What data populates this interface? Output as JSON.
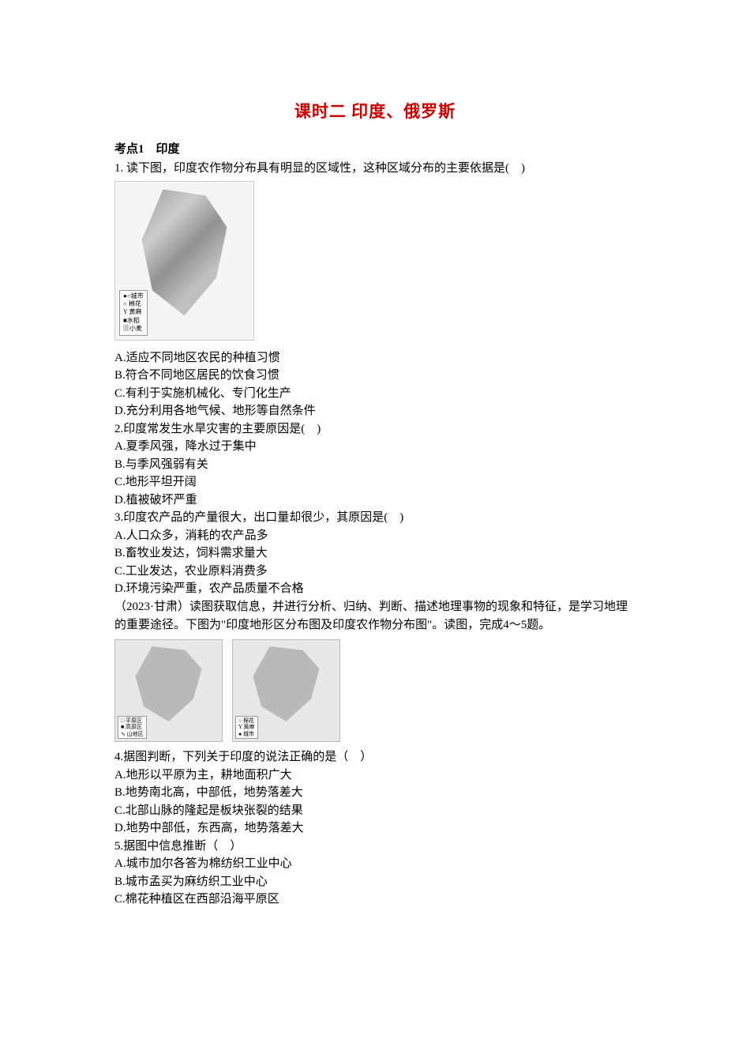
{
  "title": "课时二 印度、俄罗斯",
  "section1": {
    "header": "考点1　印度"
  },
  "q1": {
    "stem": "1. 读下图，印度农作物分布具有明显的区域性，这种区域分布的主要依据是(　)",
    "legend": {
      "l1": "●○城市",
      "l2": "○ 棉花",
      "l3": "Y 黄麻",
      "l4": "■水稻",
      "l5": "▥小麦"
    },
    "a": "A.适应不同地区农民的种植习惯",
    "b": "B.符合不同地区居民的饮食习惯",
    "c": "C.有利于实施机械化、专门化生产",
    "d": "D.充分利用各地气候、地形等自然条件"
  },
  "q2": {
    "stem": "2.印度常发生水旱灾害的主要原因是(　)",
    "a": "A.夏季风强，降水过于集中",
    "b": "B.与季风强弱有关",
    "c": "C.地形平坦开阔",
    "d": "D.植被破坏严重"
  },
  "q3": {
    "stem": "3.印度农产品的产量很大，出口量却很少，其原因是(　)",
    "a": "A.人口众多，消耗的农产品多",
    "b": "B.畜牧业发达，饲料需求量大",
    "c": "C.工业发达，农业原料消费多",
    "d": "D.环境污染严重，农产品质量不合格"
  },
  "context45": "（2023·甘肃）读图获取信息，并进行分析、归纳、判断、描述地理事物的现象和特征，是学习地理的重要途径。下图为\"印度地形区分布图及印度农作物分布图\"。读图，完成4～5题。",
  "map_pair": {
    "legend1": {
      "l1": "□ 平原区",
      "l2": "■ 高原区",
      "l3": "∿ 山地区"
    },
    "legend2": {
      "l1": "○ 棉花",
      "l2": "Y 黄麻",
      "l3": "● 城市"
    }
  },
  "q4": {
    "stem": "4.据图判断，下列关于印度的说法正确的是（　）",
    "a": "A.地形以平原为主，耕地面积广大",
    "b": "B.地势南北高，中部低，地势落差大",
    "c": "C.北部山脉的隆起是板块张裂的结果",
    "d": "D.地势中部低，东西高，地势落差大"
  },
  "q5": {
    "stem": "5.据图中信息推断（　）",
    "a": "A.城市加尔各答为棉纺织工业中心",
    "b": "B.城市孟买为麻纺织工业中心",
    "c": "C.棉花种植区在西部沿海平原区"
  }
}
